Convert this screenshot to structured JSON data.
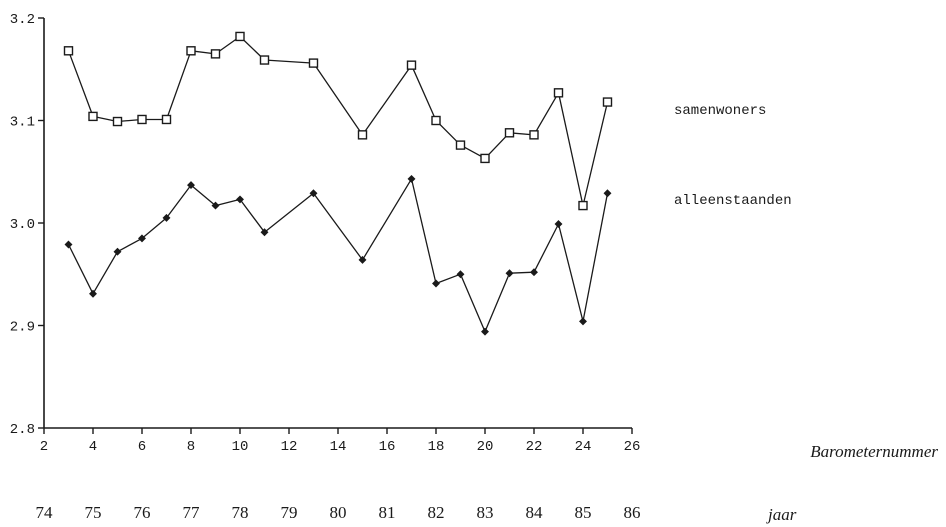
{
  "chart_data": {
    "type": "line",
    "title": "",
    "xlabel": "Barometernummer",
    "x2label": "jaar",
    "ylabel": "",
    "xlim": [
      2,
      26
    ],
    "ylim": [
      2.8,
      3.2
    ],
    "grid": false,
    "x_ticks": [
      2,
      4,
      6,
      8,
      10,
      12,
      14,
      16,
      18,
      20,
      22,
      24,
      26
    ],
    "y_ticks": [
      "2.8",
      "2.9",
      "3.0",
      "3.1",
      "3.2"
    ],
    "y_tick_values": [
      2.8,
      2.9,
      3.0,
      3.1,
      3.2
    ],
    "year_labels": [
      {
        "x": 2,
        "label": "74"
      },
      {
        "x": 4,
        "label": "75"
      },
      {
        "x": 6,
        "label": "76"
      },
      {
        "x": 8,
        "label": "77"
      },
      {
        "x": 10,
        "label": "78"
      },
      {
        "x": 12,
        "label": "79"
      },
      {
        "x": 14,
        "label": "80"
      },
      {
        "x": 16,
        "label": "81"
      },
      {
        "x": 18,
        "label": "82"
      },
      {
        "x": 20,
        "label": "83"
      },
      {
        "x": 22,
        "label": "84"
      },
      {
        "x": 24,
        "label": "85"
      },
      {
        "x": 26,
        "label": "86"
      }
    ],
    "series": [
      {
        "name": "samenwoners",
        "marker": "square",
        "color": "#1a1a1a",
        "x": [
          3,
          4,
          5,
          6,
          7,
          8,
          9,
          10,
          11,
          13,
          15,
          17,
          18,
          19,
          20,
          21,
          22,
          23,
          24,
          25
        ],
        "y": [
          3.168,
          3.104,
          3.099,
          3.101,
          3.101,
          3.168,
          3.165,
          3.182,
          3.159,
          3.156,
          3.086,
          3.154,
          3.1,
          3.076,
          3.063,
          3.088,
          3.086,
          3.127,
          3.017,
          3.118
        ]
      },
      {
        "name": "alleenstaanden",
        "marker": "diamond",
        "color": "#1a1a1a",
        "x": [
          3,
          4,
          5,
          6,
          7,
          8,
          9,
          10,
          11,
          13,
          15,
          17,
          18,
          19,
          20,
          21,
          22,
          23,
          24,
          25
        ],
        "y": [
          2.979,
          2.931,
          2.972,
          2.985,
          3.005,
          3.037,
          3.017,
          3.023,
          2.991,
          3.029,
          2.964,
          3.043,
          2.941,
          2.95,
          2.894,
          2.951,
          2.952,
          2.999,
          2.904,
          3.029
        ]
      }
    ]
  }
}
